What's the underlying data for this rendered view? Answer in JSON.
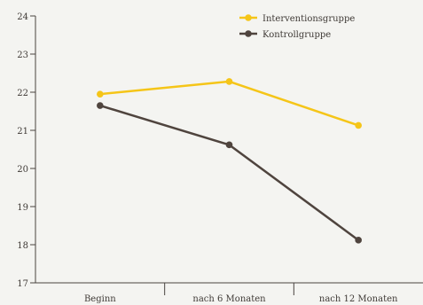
{
  "chart_data": {
    "type": "line",
    "categories": [
      "Beginn",
      "nach 6 Monaten",
      "nach 12 Monaten"
    ],
    "series": [
      {
        "name": "Interventionsgruppe",
        "values": [
          21.95,
          22.28,
          21.13
        ],
        "color": "#f5c518"
      },
      {
        "name": "Kontrollgruppe",
        "values": [
          21.65,
          20.62,
          18.12
        ],
        "color": "#4f443e"
      }
    ],
    "y_ticks": [
      "17",
      "18",
      "19",
      "20",
      "21",
      "22",
      "23",
      "24"
    ],
    "ylim": [
      17,
      24
    ],
    "grid": false,
    "legend_position": "top-right",
    "axis_color": "#4a4440"
  }
}
